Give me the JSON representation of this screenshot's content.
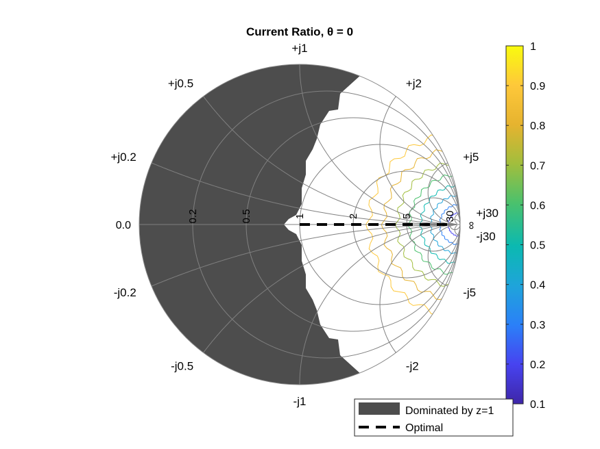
{
  "chart_data": {
    "type": "smith-chart-contour",
    "title": "Current Ratio, θ = 0",
    "resistance_labels": [
      "0.0",
      "0.2",
      "0.5",
      "1",
      "2",
      "5",
      "30",
      "∞"
    ],
    "reactance_labels": {
      "top": [
        "+j0.2",
        "+j0.5",
        "+j1",
        "+j2",
        "+j5",
        "+j30"
      ],
      "bottom": [
        "-j0.2",
        "-j0.5",
        "-j1",
        "-j2",
        "-j5",
        "-j30"
      ]
    },
    "grid_resistances": [
      0.2,
      0.5,
      1,
      2,
      5,
      30
    ],
    "grid_reactances": [
      0.2,
      0.5,
      1,
      2,
      5,
      30
    ],
    "contour_levels": [
      0.2,
      0.3,
      0.4,
      0.5,
      0.6,
      0.7,
      0.8,
      0.9
    ],
    "colorbar": {
      "min": 0.1,
      "max": 1,
      "ticks": [
        "0.1",
        "0.2",
        "0.3",
        "0.4",
        "0.5",
        "0.6",
        "0.7",
        "0.8",
        "0.9",
        "1"
      ],
      "colormap": [
        "#3e26a8",
        "#4743f0",
        "#2b80f8",
        "#1fa4da",
        "#0bb9b1",
        "#4ac16d",
        "#a1be3d",
        "#e6b32f",
        "#fec83a",
        "#f9fb0e"
      ]
    },
    "dominated_color": "#4d4d4d",
    "optimal_line": {
      "from_r": 1,
      "to_r": 30,
      "x": 0
    },
    "legend": {
      "position": "bottom-right",
      "entries": [
        "Dominated by z=1",
        "Optimal"
      ]
    }
  }
}
